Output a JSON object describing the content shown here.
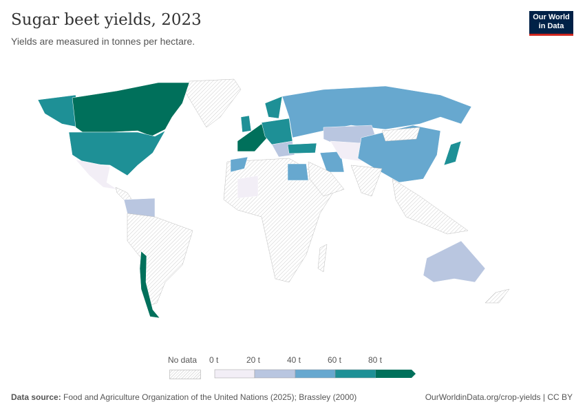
{
  "header": {
    "title": "Sugar beet yields, 2023",
    "subtitle": "Yields are measured in tonnes per hectare."
  },
  "logo": {
    "line1": "Our World",
    "line2": "in Data"
  },
  "legend": {
    "no_data": "No data",
    "ticks": [
      "0 t",
      "20 t",
      "40 t",
      "60 t",
      "80 t"
    ],
    "bins": [
      {
        "range": "0-20 t",
        "color": "#f2eef6"
      },
      {
        "range": "20-40 t",
        "color": "#b9c6e0"
      },
      {
        "range": "40-60 t",
        "color": "#67a8cf"
      },
      {
        "range": "60-80 t",
        "color": "#1e9096"
      },
      {
        "range": "80+ t",
        "color": "#00705b"
      }
    ]
  },
  "footer": {
    "source_label": "Data source:",
    "source": "Food and Agriculture Organization of the United Nations (2025); Brassley (2000)",
    "url": "OurWorldinData.org/crop-yields | CC BY"
  }
}
